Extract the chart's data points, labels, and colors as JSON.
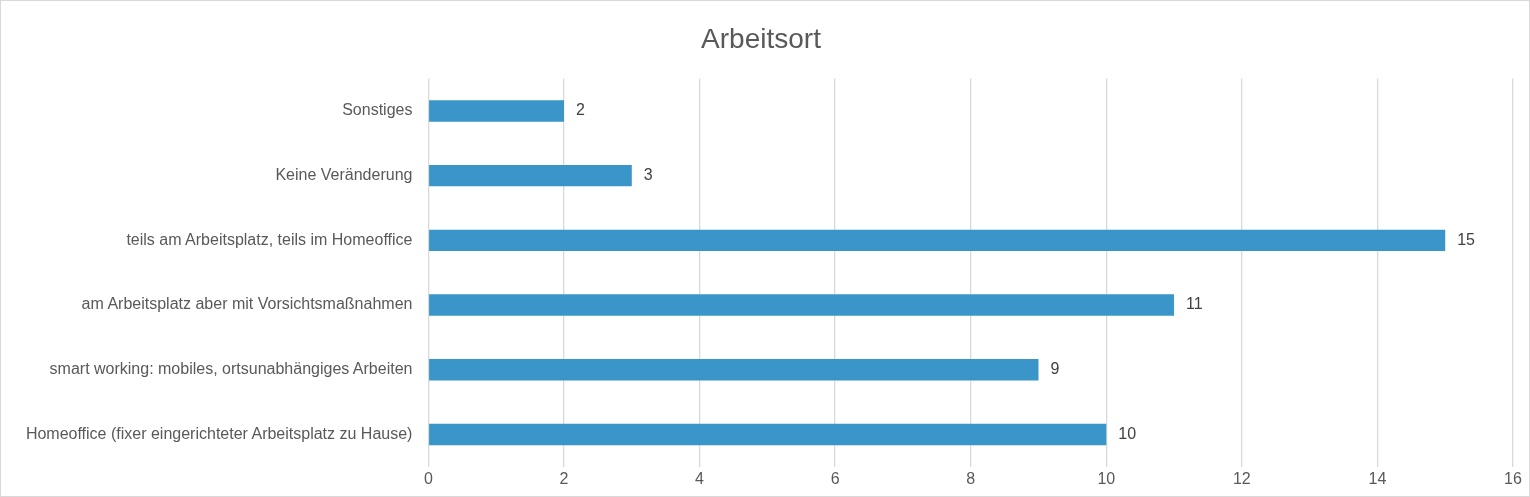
{
  "chart_data": {
    "type": "bar",
    "title": "Arbeitsort",
    "orientation": "horizontal",
    "categories": [
      "Sonstiges",
      "Keine Veränderung",
      "teils am Arbeitsplatz, teils im Homeoffice",
      "am Arbeitsplatz aber mit Vorsichtsmaßnahmen",
      "smart working: mobiles, ortsunabhängiges Arbeiten",
      "Homeoffice (fixer eingerichteter Arbeitsplatz zu Hause)"
    ],
    "values": [
      2,
      3,
      15,
      11,
      9,
      10
    ],
    "color": "#3a96c8",
    "xlim": [
      0,
      16
    ],
    "xticks": [
      0,
      2,
      4,
      6,
      8,
      10,
      12,
      14,
      16
    ],
    "grid": "x",
    "data_labels": true,
    "legend": false
  }
}
